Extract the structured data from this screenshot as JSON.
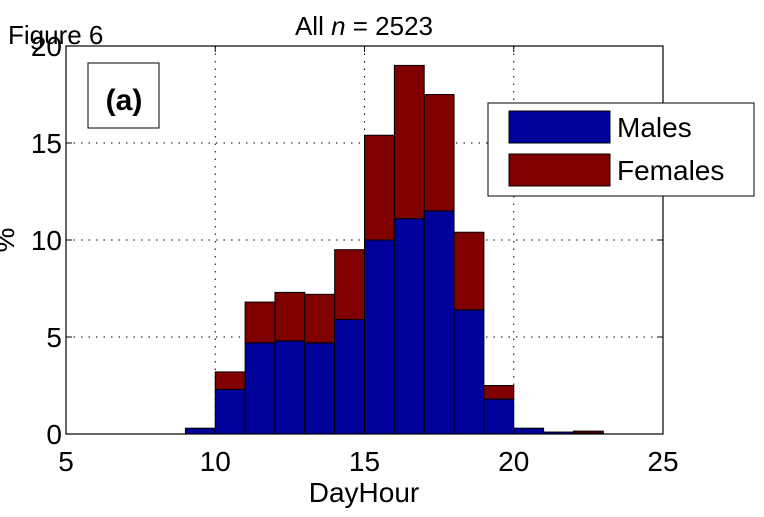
{
  "figure_label": "Figure 6",
  "panel_label": "(a)",
  "chart_data": {
    "type": "bar",
    "stacked": true,
    "title_prefix": "All ",
    "title_var": "n",
    "title_suffix": " = 2523",
    "xlabel": "DayHour",
    "ylabel": "%",
    "xlim": [
      5,
      25
    ],
    "ylim": [
      0,
      20
    ],
    "xticks": [
      5,
      10,
      15,
      20,
      25
    ],
    "yticks": [
      0,
      5,
      10,
      15,
      20
    ],
    "grid": true,
    "legend_position": "top-right",
    "bin_width": 1,
    "x": [
      9,
      10,
      11,
      12,
      13,
      14,
      15,
      16,
      17,
      18,
      19,
      20,
      21,
      22
    ],
    "series": [
      {
        "name": "Males",
        "color": "#00009b",
        "values": [
          0.3,
          2.3,
          4.7,
          4.8,
          4.7,
          5.9,
          10.0,
          11.1,
          11.5,
          6.4,
          1.8,
          0.3,
          0.1,
          0.05
        ]
      },
      {
        "name": "Females",
        "color": "#800000",
        "values": [
          0.0,
          0.9,
          2.1,
          2.5,
          2.5,
          3.6,
          5.4,
          7.9,
          6.0,
          4.0,
          0.7,
          0.0,
          0.0,
          0.1
        ]
      }
    ]
  }
}
